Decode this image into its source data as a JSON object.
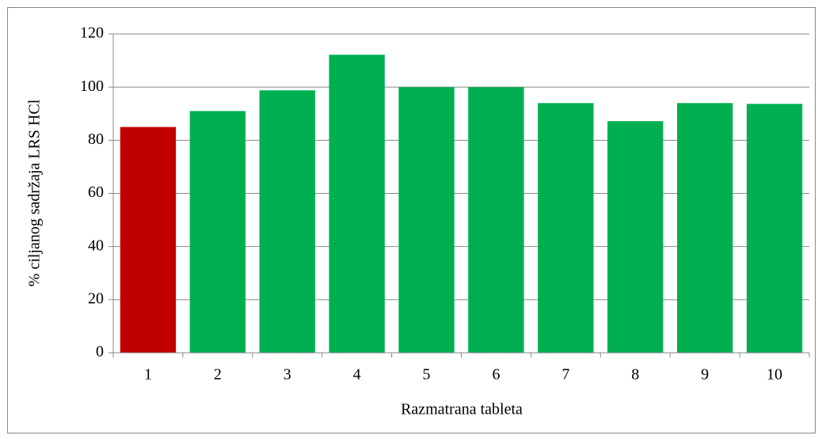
{
  "chart_data": {
    "type": "bar",
    "categories": [
      "1",
      "2",
      "3",
      "4",
      "5",
      "6",
      "7",
      "8",
      "9",
      "10"
    ],
    "values": [
      85,
      91,
      98.8,
      112.2,
      100,
      100,
      94,
      87.2,
      94,
      93.7
    ],
    "colors": [
      "#c00000",
      "#00b050",
      "#00b050",
      "#00b050",
      "#00b050",
      "#00b050",
      "#00b050",
      "#00b050",
      "#00b050",
      "#00b050"
    ],
    "x_label": "Razmatrana tableta",
    "y_label": "% ciljanog sadržaja LRS HCl",
    "ylim": [
      0,
      120
    ],
    "yticks": [
      0,
      20,
      40,
      60,
      80,
      100,
      120
    ],
    "grid": true
  }
}
